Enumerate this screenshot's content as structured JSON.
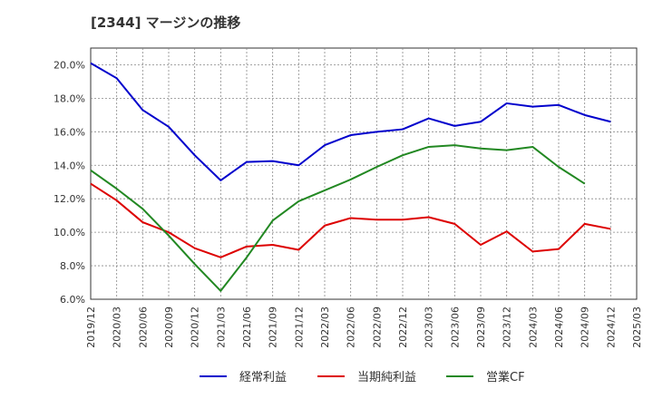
{
  "chart_data": {
    "type": "line",
    "title": "[2344]  マージンの推移",
    "xlabel": "",
    "ylabel": "",
    "ylim": [
      6.0,
      21.0
    ],
    "yticks": [
      "6.0%",
      "8.0%",
      "10.0%",
      "12.0%",
      "14.0%",
      "16.0%",
      "18.0%",
      "20.0%"
    ],
    "ytick_values": [
      6,
      8,
      10,
      12,
      14,
      16,
      18,
      20
    ],
    "categories": [
      "2019/12",
      "2020/03",
      "2020/06",
      "2020/09",
      "2020/12",
      "2021/03",
      "2021/06",
      "2021/09",
      "2021/12",
      "2022/03",
      "2022/06",
      "2022/09",
      "2022/12",
      "2023/03",
      "2023/06",
      "2023/09",
      "2023/12",
      "2024/03",
      "2024/06",
      "2024/09",
      "2024/12",
      "2025/03"
    ],
    "grid": true,
    "legend_position": "bottom",
    "series": [
      {
        "name": "経常利益",
        "color": "#0000cc",
        "values": [
          20.1,
          19.2,
          17.3,
          16.3,
          14.6,
          13.1,
          14.2,
          14.25,
          14.0,
          15.2,
          15.8,
          16.0,
          16.15,
          16.8,
          16.35,
          16.6,
          17.7,
          17.5,
          17.6,
          17.0,
          16.6,
          null
        ]
      },
      {
        "name": "当期純利益",
        "color": "#dd0000",
        "values": [
          12.9,
          11.9,
          10.6,
          10.0,
          9.05,
          8.5,
          9.15,
          9.25,
          8.95,
          10.4,
          10.85,
          10.75,
          10.75,
          10.9,
          10.5,
          9.25,
          10.05,
          8.85,
          9.0,
          10.5,
          10.2,
          null
        ]
      },
      {
        "name": "営業CF",
        "color": "#228822",
        "values": [
          13.7,
          12.6,
          11.4,
          9.8,
          8.1,
          6.5,
          8.5,
          10.7,
          11.85,
          12.5,
          13.15,
          13.9,
          14.6,
          15.1,
          15.2,
          15.0,
          14.9,
          15.1,
          13.9,
          12.9,
          null,
          null
        ]
      }
    ]
  }
}
